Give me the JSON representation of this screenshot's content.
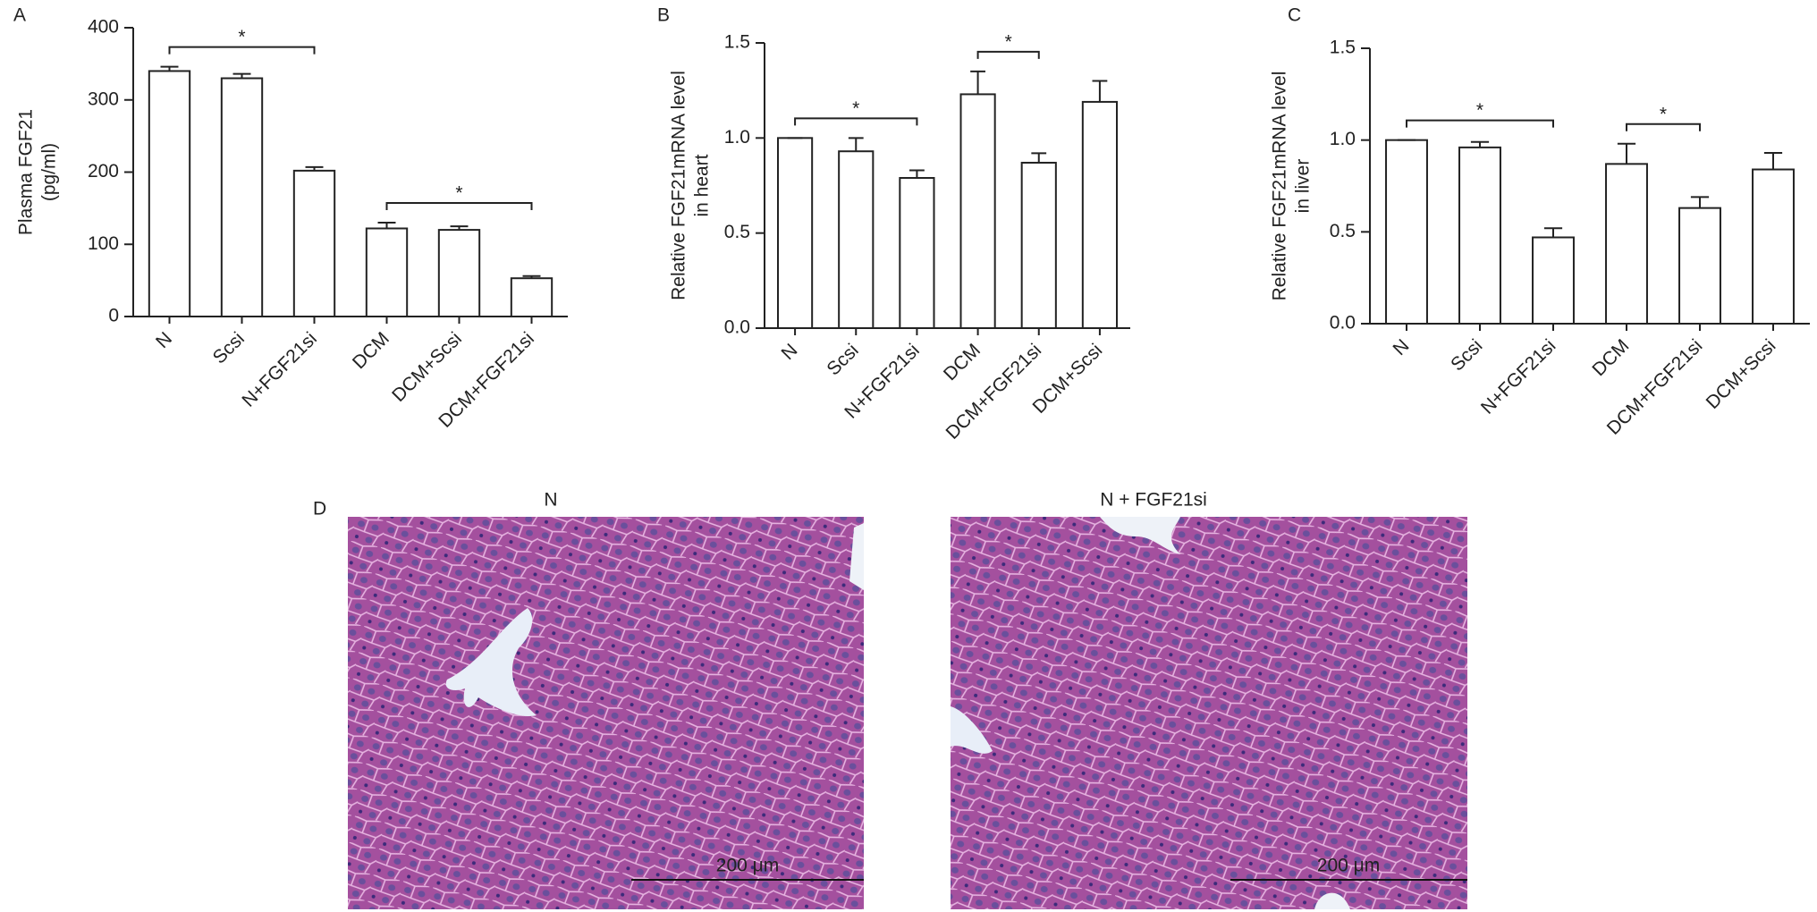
{
  "chart_data": [
    {
      "type": "bar",
      "panel": "A",
      "ylabel": [
        "Plasma FGF21",
        "(pg/ml)"
      ],
      "categories": [
        "N",
        "Scsi",
        "N+FGF21si",
        "DCM",
        "DCM+Scsi",
        "DCM+FGF21si"
      ],
      "values": [
        340,
        330,
        202,
        122,
        120,
        53
      ],
      "errors": [
        6,
        6,
        5,
        8,
        5,
        3
      ],
      "color": "#ffffff",
      "ylim": [
        0,
        400
      ],
      "yticks": [
        0,
        100,
        200,
        300,
        400
      ],
      "annotations": [
        {
          "text": "*",
          "from": "N",
          "to": "N+FGF21si"
        },
        {
          "text": "*",
          "from": "DCM",
          "to": "DCM+FGF21si"
        }
      ]
    },
    {
      "type": "bar",
      "panel": "B",
      "ylabel": [
        "Relative FGF21mRNA level",
        "in heart"
      ],
      "categories": [
        "N",
        "Scsi",
        "N+FGF21si",
        "DCM",
        "DCM+FGF21si",
        "DCM+Scsi"
      ],
      "values": [
        1.0,
        0.93,
        0.79,
        1.23,
        0.87,
        1.19
      ],
      "errors": [
        0,
        0.07,
        0.04,
        0.12,
        0.05,
        0.11
      ],
      "color": "#ffffff",
      "ylim": [
        0,
        1.5
      ],
      "yticks": [
        {
          "value": 0,
          "label": "0.0"
        },
        {
          "value": 0.5,
          "label": "0.5"
        },
        {
          "value": 1,
          "label": "1.0"
        },
        {
          "value": 1.5,
          "label": "1.5"
        }
      ],
      "annotations": [
        {
          "text": "*",
          "from": "N",
          "to": "N+FGF21si"
        },
        {
          "text": "*",
          "from": "DCM",
          "to": "DCM+FGF21si"
        }
      ]
    },
    {
      "type": "bar",
      "panel": "C",
      "ylabel": [
        "Relative FGF21mRNA level",
        "in liver"
      ],
      "categories": [
        "N",
        "Scsi",
        "N+FGF21si",
        "DCM",
        "DCM+FGF21si",
        "DCM+Scsi"
      ],
      "values": [
        1.0,
        0.96,
        0.47,
        0.87,
        0.63,
        0.84
      ],
      "errors": [
        0,
        0.03,
        0.05,
        0.11,
        0.06,
        0.09
      ],
      "color": "#ffffff",
      "ylim": [
        0,
        1.5
      ],
      "yticks": [
        {
          "value": 0,
          "label": "0.0"
        },
        {
          "value": 0.5,
          "label": "0.5"
        },
        {
          "value": 1,
          "label": "1.0"
        },
        {
          "value": 1.5,
          "label": "1.5"
        }
      ],
      "annotations": [
        {
          "text": "*",
          "from": "N",
          "to": "N+FGF21si"
        },
        {
          "text": "*",
          "from": "DCM",
          "to": "DCM+FGF21si"
        }
      ]
    }
  ],
  "figure_d": {
    "panel": "D",
    "images": [
      {
        "title": "N",
        "scale_bar": "200 μm"
      },
      {
        "title": "N + FGF21si",
        "scale_bar": "200 μm"
      }
    ]
  }
}
